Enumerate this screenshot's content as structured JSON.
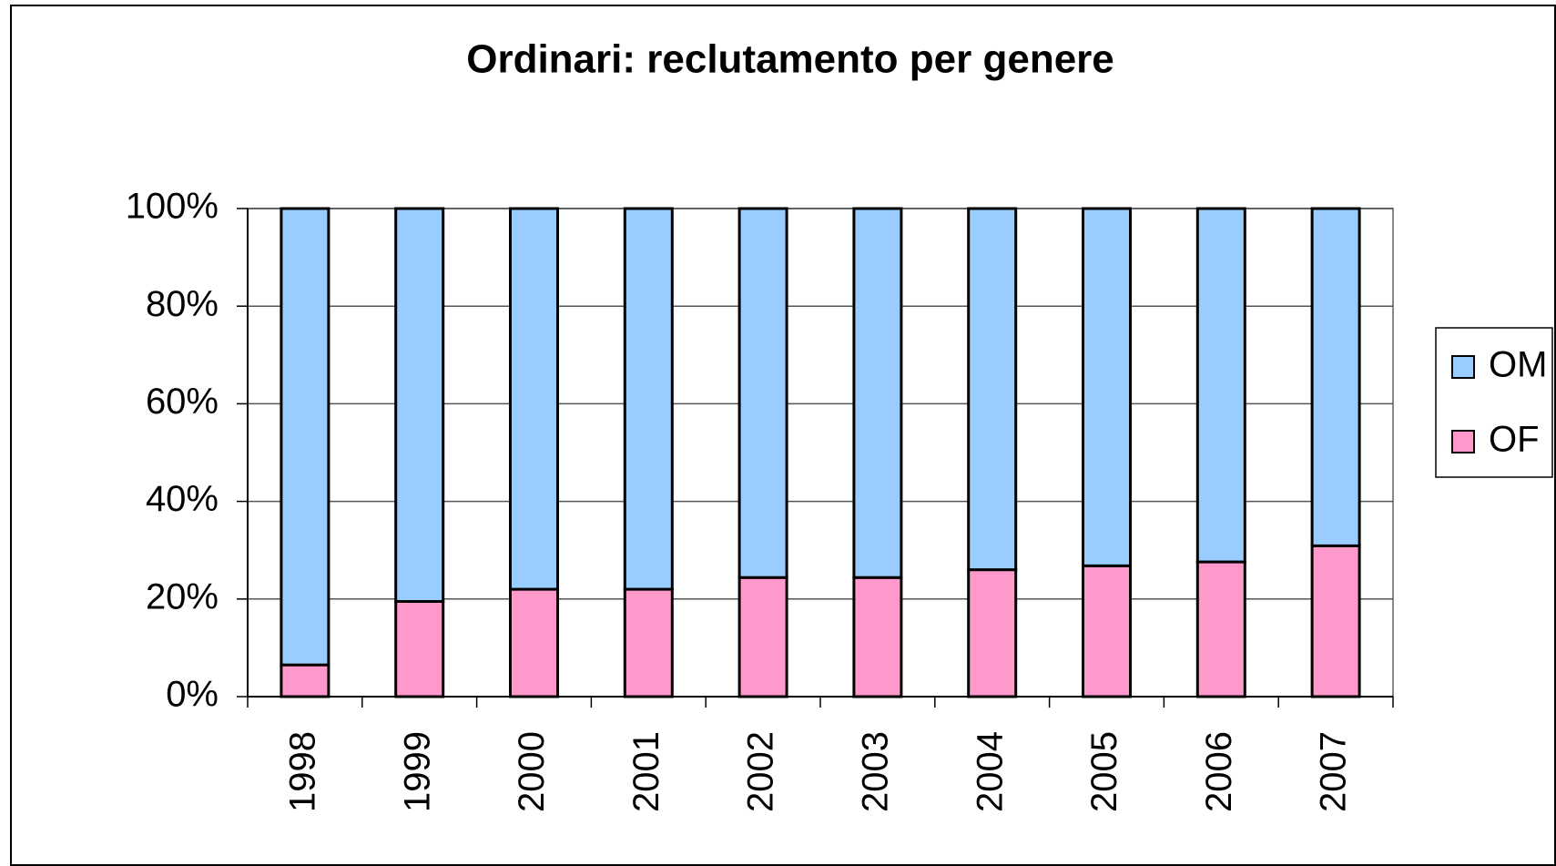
{
  "chart_data": {
    "type": "stacked_bar_100",
    "title": "Ordinari: reclutamento per genere",
    "categories": [
      "1998",
      "1999",
      "2000",
      "2001",
      "2002",
      "2003",
      "2004",
      "2005",
      "2006",
      "2007"
    ],
    "series": [
      {
        "name": "OF",
        "color": "#ff99cc",
        "values": [
          6.5,
          19.5,
          22,
          22,
          24.4,
          24.4,
          26,
          26.8,
          27.6,
          30.9
        ]
      },
      {
        "name": "OM",
        "color": "#99ccff",
        "values": [
          93.5,
          80.5,
          78,
          78,
          75.6,
          75.6,
          74,
          73.2,
          72.4,
          69.1
        ]
      }
    ],
    "ylim": [
      0,
      100
    ],
    "yticks": [
      {
        "value": 0,
        "label": "0%"
      },
      {
        "value": 20,
        "label": "20%"
      },
      {
        "value": 40,
        "label": "40%"
      },
      {
        "value": 60,
        "label": "60%"
      },
      {
        "value": 80,
        "label": "80%"
      },
      {
        "value": 100,
        "label": "100%"
      }
    ],
    "grid": true,
    "legend": "right"
  }
}
